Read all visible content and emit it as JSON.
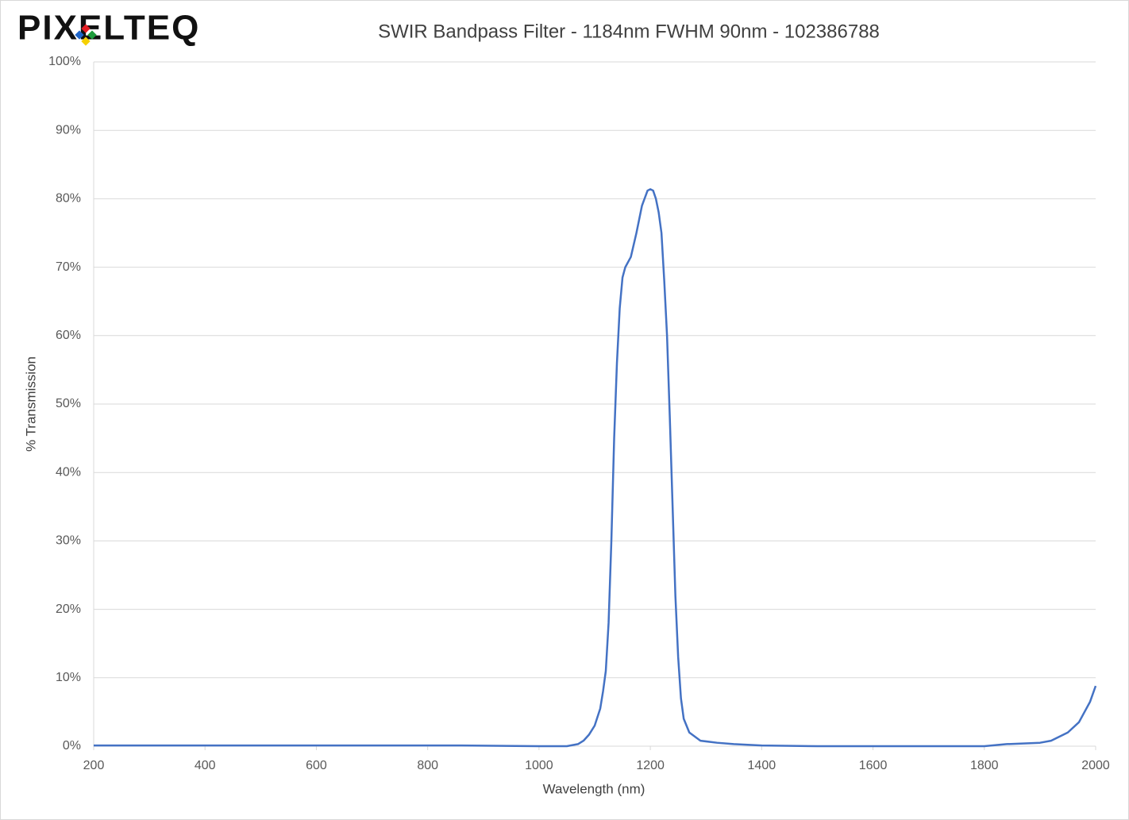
{
  "chart_data": {
    "type": "line",
    "logo": "PIXELTEQ",
    "title": "SWIR Bandpass Filter - 1184nm FWHM 90nm - 102386788",
    "x_label": "Wavelength (nm)",
    "y_label": "% Transmission",
    "color": "#4472c4",
    "grid": true,
    "xlim": [
      200,
      2000
    ],
    "xticks": [
      200,
      400,
      600,
      800,
      1000,
      1200,
      1400,
      1600,
      1800,
      2000
    ],
    "ylim": [
      0,
      100
    ],
    "yticks": [
      {
        "value": 0,
        "label": "0%"
      },
      {
        "value": 10,
        "label": "10%"
      },
      {
        "value": 20,
        "label": "20%"
      },
      {
        "value": 30,
        "label": "30%"
      },
      {
        "value": 40,
        "label": "40%"
      },
      {
        "value": 50,
        "label": "50%"
      },
      {
        "value": 60,
        "label": "60%"
      },
      {
        "value": 70,
        "label": "70%"
      },
      {
        "value": 80,
        "label": "80%"
      },
      {
        "value": 90,
        "label": "90%"
      },
      {
        "value": 100,
        "label": "100%"
      }
    ],
    "x": [
      200,
      400,
      600,
      860,
      1000,
      1050,
      1070,
      1080,
      1090,
      1100,
      1110,
      1115,
      1120,
      1125,
      1130,
      1135,
      1140,
      1145,
      1150,
      1155,
      1165,
      1175,
      1185,
      1195,
      1200,
      1205,
      1210,
      1215,
      1220,
      1225,
      1230,
      1235,
      1240,
      1245,
      1250,
      1255,
      1260,
      1270,
      1290,
      1320,
      1350,
      1400,
      1500,
      1800,
      1840,
      1900,
      1920,
      1950,
      1970,
      1990,
      2000
    ],
    "values": [
      0.1,
      0.1,
      0.1,
      0.1,
      0,
      0,
      0.3,
      0.8,
      1.7,
      3,
      5.5,
      8,
      11,
      18,
      30,
      45,
      56,
      64,
      68.5,
      70,
      71.5,
      75,
      79,
      81.2,
      81.4,
      81.2,
      80,
      78,
      75,
      68,
      60,
      48,
      35,
      22,
      13,
      7,
      4,
      2,
      0.8,
      0.5,
      0.3,
      0.1,
      0,
      0,
      0.3,
      0.5,
      0.8,
      2,
      3.5,
      6.5,
      8.8
    ]
  }
}
